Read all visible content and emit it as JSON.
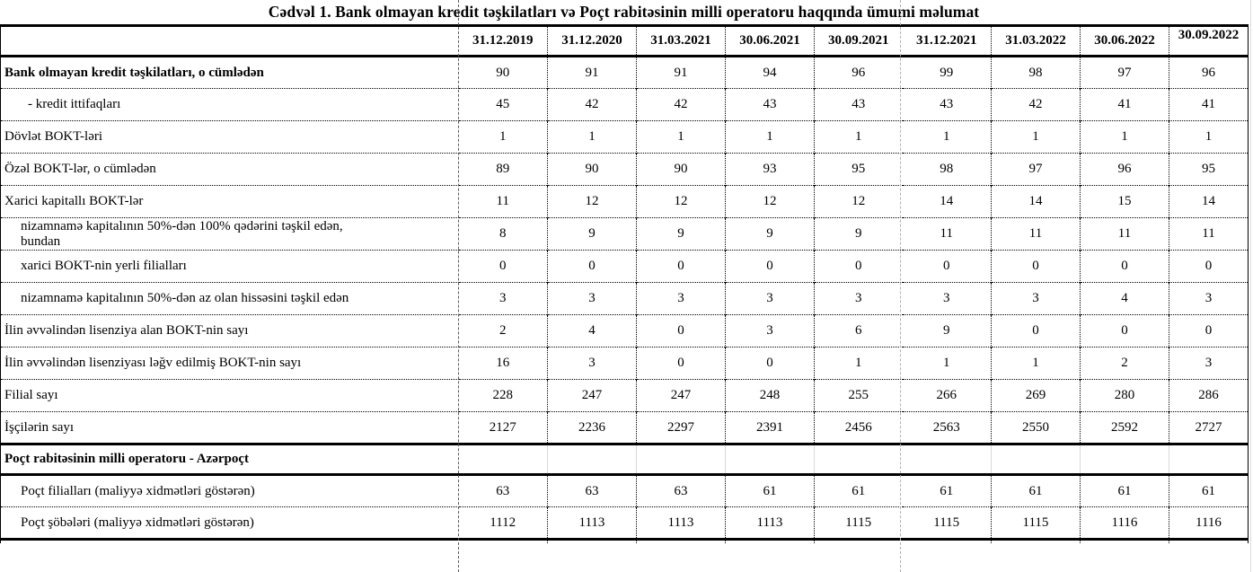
{
  "title": "Cədvəl 1. Bank olmayan kredit təşkilatları və Poçt rabitəsinin milli operatoru haqqında ümumi məlumat",
  "table": {
    "corner_label": "",
    "columns": [
      "31.12.2019",
      "31.12.2020",
      "31.03.2021",
      "30.06.2021",
      "30.09.2021",
      "31.12.2021",
      "31.03.2022",
      "30.06.2022",
      "30.09.2022"
    ],
    "rows": [
      {
        "label": "Bank olmayan kredit təşkilatları, o cümlədən",
        "bold": true,
        "indent": 0,
        "values": [
          "90",
          "91",
          "91",
          "94",
          "96",
          "99",
          "98",
          "97",
          "96"
        ]
      },
      {
        "label": "- kredit ittifaqları",
        "bold": false,
        "indent": 2,
        "values": [
          "45",
          "42",
          "42",
          "43",
          "43",
          "43",
          "42",
          "41",
          "41"
        ]
      },
      {
        "label": "Dövlət BOKT-ləri",
        "bold": false,
        "indent": 0,
        "values": [
          "1",
          "1",
          "1",
          "1",
          "1",
          "1",
          "1",
          "1",
          "1"
        ]
      },
      {
        "label": "Özəl BOKT-lər, o cümlədən",
        "bold": false,
        "indent": 0,
        "values": [
          "89",
          "90",
          "90",
          "93",
          "95",
          "98",
          "97",
          "96",
          "95"
        ]
      },
      {
        "label": "Xarici kapitallı BOKT-lər",
        "bold": false,
        "indent": 0,
        "values": [
          "11",
          "12",
          "12",
          "12",
          "12",
          "14",
          "14",
          "15",
          "14"
        ]
      },
      {
        "label": "nizamnamə kapitalının 50%-dən 100% qədərini təşkil edən,",
        "label2": "bundan",
        "bold": false,
        "indent": 1,
        "values": [
          "8",
          "9",
          "9",
          "9",
          "9",
          "11",
          "11",
          "11",
          "11"
        ]
      },
      {
        "label": "xarici BOKT-nin yerli filialları",
        "bold": false,
        "indent": 1,
        "values": [
          "0",
          "0",
          "0",
          "0",
          "0",
          "0",
          "0",
          "0",
          "0"
        ]
      },
      {
        "label": "nizamnamə kapitalının 50%-dən az olan hissəsini  təşkil edən",
        "bold": false,
        "indent": 1,
        "values": [
          "3",
          "3",
          "3",
          "3",
          "3",
          "3",
          "3",
          "4",
          "3"
        ]
      },
      {
        "label": "İlin əvvəlindən lisenziya alan BOKT-nin sayı",
        "bold": false,
        "indent": 0,
        "values": [
          "2",
          "4",
          "0",
          "3",
          "6",
          "9",
          "0",
          "0",
          "0"
        ]
      },
      {
        "label": "İlin əvvəlindən lisenziyası ləğv edilmiş BOKT-nin sayı",
        "bold": false,
        "indent": 0,
        "values": [
          "16",
          "3",
          "0",
          "0",
          "1",
          "1",
          "1",
          "2",
          "3"
        ]
      },
      {
        "label": "Filial sayı",
        "bold": false,
        "indent": 0,
        "values": [
          "228",
          "247",
          "247",
          "248",
          "255",
          "266",
          "269",
          "280",
          "286"
        ]
      },
      {
        "label": "İşçilərin sayı",
        "bold": false,
        "indent": 0,
        "values": [
          "2127",
          "2236",
          "2297",
          "2391",
          "2456",
          "2563",
          "2550",
          "2592",
          "2727"
        ]
      },
      {
        "label": "Poçt rabitəsinin milli operatoru - Azərpoçt",
        "bold": true,
        "section": true,
        "indent": 0,
        "values": [
          "",
          "",
          "",
          "",
          "",
          "",
          "",
          "",
          ""
        ]
      },
      {
        "label": "Poçt filialları (maliyyə xidmətləri göstərən)",
        "bold": false,
        "indent": 1,
        "values": [
          "63",
          "63",
          "63",
          "61",
          "61",
          "61",
          "61",
          "61",
          "61"
        ]
      },
      {
        "label": "Poçt şöbələri (maliyyə xidmətləri göstərən)",
        "bold": false,
        "indent": 1,
        "values": [
          "1112",
          "1113",
          "1113",
          "1113",
          "1115",
          "1115",
          "1115",
          "1116",
          "1116"
        ]
      }
    ]
  }
}
